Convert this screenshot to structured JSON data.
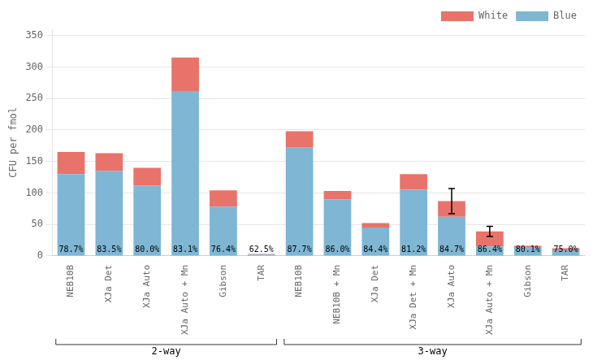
{
  "chart_data": {
    "type": "bar",
    "stacked": true,
    "ylabel": "CFU per fmol",
    "groups": [
      {
        "name": "2-way",
        "categories": [
          "NEB10B",
          "XJa Det",
          "XJa Auto",
          "XJa Auto + Mn",
          "Gibson",
          "TAR"
        ]
      },
      {
        "name": "3-way",
        "categories": [
          "NEB10B",
          "NEB10B + Mn",
          "XJa Det",
          "XJa Det + Mn",
          "XJa Auto",
          "XJa Auto + Mn",
          "Gibson",
          "TAR"
        ]
      }
    ],
    "series": [
      {
        "name": "Blue",
        "color": "#7EB6D4",
        "values": [
          130,
          135,
          112,
          262,
          78,
          2,
          172,
          90,
          45,
          105,
          62,
          15,
          14,
          9
        ]
      },
      {
        "name": "White",
        "color": "#E8736A",
        "values": [
          35,
          28,
          28,
          53,
          26,
          1,
          26,
          13,
          7,
          25,
          25,
          24,
          2,
          3
        ],
        "errors": [
          null,
          null,
          null,
          null,
          null,
          null,
          null,
          null,
          null,
          null,
          [
            20,
            20
          ],
          [
            8,
            8
          ],
          null,
          null
        ]
      }
    ],
    "annotations": [
      "78.7%",
      "83.5%",
      "80.0%",
      "83.1%",
      "76.4%",
      "62.5%",
      "87.7%",
      "86.0%",
      "84.4%",
      "81.2%",
      "84.7%",
      "86.4%",
      "80.1%",
      "75.0%"
    ],
    "ylim": [
      0,
      360
    ],
    "yticks": [
      0,
      50,
      100,
      150,
      200,
      250,
      300,
      350
    ],
    "grid": true,
    "legend": "upper right"
  }
}
